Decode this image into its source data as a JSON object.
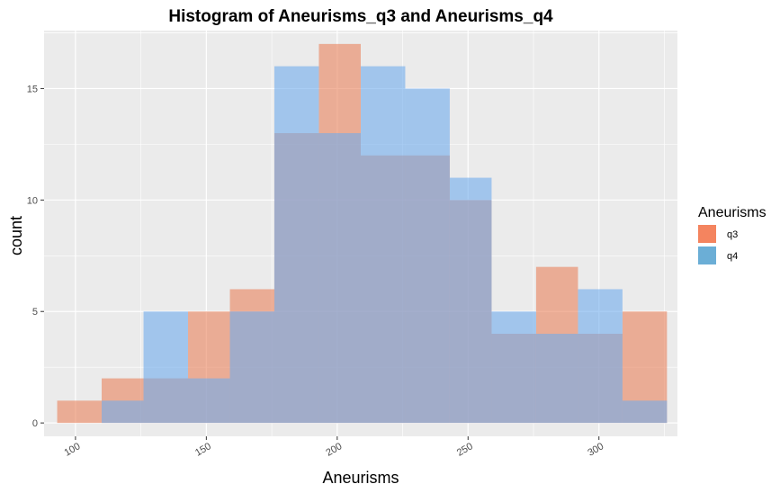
{
  "chart_data": {
    "type": "histogram",
    "title": "Histogram of Aneurisms_q3 and Aneurisms_q4",
    "xlabel": "Aneurisms",
    "ylabel": "count",
    "xlim": [
      88,
      330
    ],
    "ylim": [
      -0.6,
      17.6
    ],
    "bin_edges": [
      93,
      110,
      126,
      143,
      159,
      176,
      193,
      209,
      226,
      243,
      259,
      276,
      292,
      309,
      326
    ],
    "x_ticks": [
      100,
      150,
      200,
      250,
      300
    ],
    "y_ticks": [
      0,
      5,
      10,
      15
    ],
    "grid": true,
    "legend_position": "right",
    "legend_title": "Aneurisms",
    "series": [
      {
        "name": "q3",
        "color": "#F4845F",
        "values": [
          1,
          2,
          2,
          5,
          6,
          13,
          17,
          12,
          12,
          10,
          4,
          7,
          4,
          5
        ]
      },
      {
        "name": "q4",
        "color": "#6BAED6",
        "values": [
          0,
          1,
          5,
          2,
          5,
          16,
          13,
          16,
          15,
          11,
          5,
          4,
          6,
          1
        ]
      }
    ],
    "colors": {
      "panel": "#EBEBEB",
      "grid": "#FFFFFF",
      "q3_fill": "#E9825C",
      "q4_fill": "#70ACEC"
    }
  }
}
